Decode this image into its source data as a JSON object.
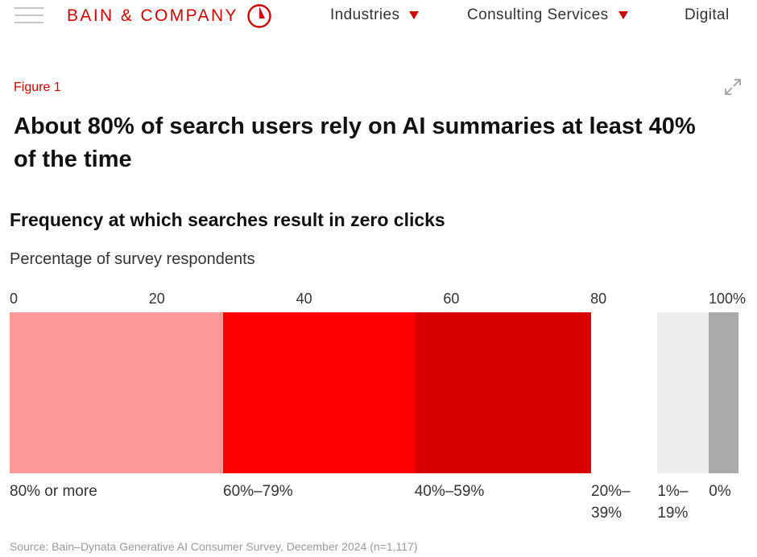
{
  "nav": {
    "logo_text": "BAIN & COMPANY",
    "menu_icon": "hamburger-menu-icon",
    "items": [
      {
        "label": "Industries",
        "has_dropdown": true
      },
      {
        "label": "Consulting Services",
        "has_dropdown": true
      },
      {
        "label": "Digital",
        "has_dropdown": false
      }
    ],
    "accent_color": "#cc0000"
  },
  "figure": {
    "label": "Figure 1",
    "title": "About 80% of search users rely on AI summaries at least 40% of the time",
    "expand_icon": "expand-icon"
  },
  "chart_data": {
    "type": "bar",
    "orientation": "horizontal-stacked-100",
    "title": "Frequency at which searches result in zero clicks",
    "subtitle": "Percentage of survey respondents",
    "xlim": [
      0,
      100
    ],
    "ticks": [
      {
        "value": 0,
        "label": "0"
      },
      {
        "value": 20,
        "label": "20"
      },
      {
        "value": 40,
        "label": "40"
      },
      {
        "value": 60,
        "label": "60"
      },
      {
        "value": 80,
        "label": "80"
      },
      {
        "value": 100,
        "label": "100%"
      }
    ],
    "segments": [
      {
        "label": "80% or more",
        "value": 29,
        "color": "#ff9999"
      },
      {
        "label": "60%–79%",
        "value": 26,
        "color": "#ff0000"
      },
      {
        "label": "40%–59%",
        "value": 24,
        "color": "#d90000"
      },
      {
        "label": "20%–39%",
        "value": 9,
        "color": "#ffffff"
      },
      {
        "label": "1%–19%",
        "value": 7,
        "color": "#eeeeee"
      },
      {
        "label": "0%",
        "value": 4,
        "color": "#aaaaaa"
      }
    ],
    "grid": false,
    "legend": "none"
  },
  "source": "Source: Bain–Dynata Generative AI Consumer Survey, December 2024 (n=1,117)"
}
